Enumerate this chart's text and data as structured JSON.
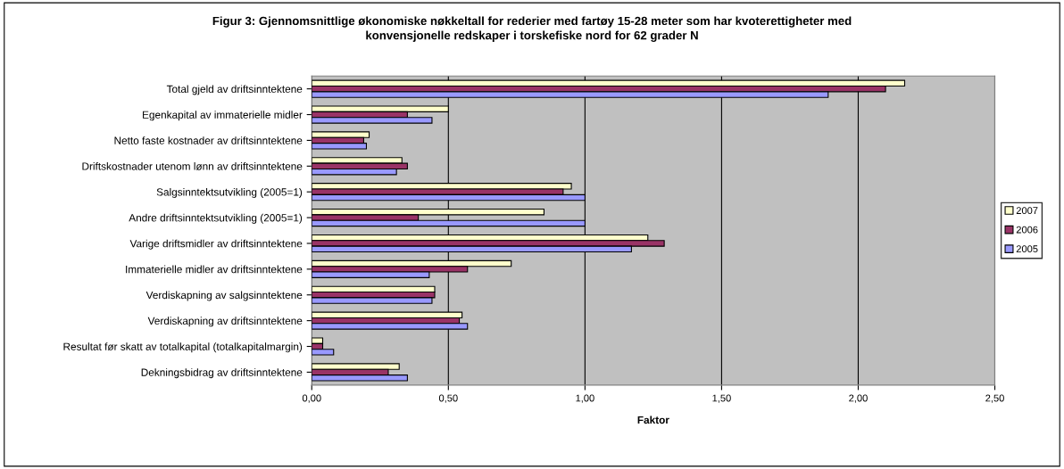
{
  "chart_data": {
    "type": "bar",
    "orientation": "horizontal",
    "title": "Figur 3: Gjennomsnittlige økonomiske nøkkeltall for rederier med fartøy 15-28 meter som har kvoterettigheter med\nkonvensjonelle redskaper i torskefiske nord for 62 grader N",
    "xlabel": "Faktor",
    "categories": [
      "Total gjeld av driftsinntektene",
      "Egenkapital av immaterielle midler",
      "Netto faste kostnader av driftsinntektene",
      "Driftskostnader utenom lønn av driftsinntektene",
      "Salgsinntektsutvikling (2005=1)",
      "Andre driftsinntektsutvikling (2005=1)",
      "Varige driftsmidler av driftsinntektene",
      "Immaterielle midler av driftsinntektene",
      "Verdiskapning av salgsinntektene",
      "Verdiskapning av driftsinntektene",
      "Resultat før skatt av totalkapital (totalkapitalmargin)",
      "Dekningsbidrag av driftsinntektene"
    ],
    "series": [
      {
        "name": "2007",
        "color": "#ffffcc",
        "values": [
          2.17,
          0.5,
          0.21,
          0.33,
          0.95,
          0.85,
          1.23,
          0.73,
          0.45,
          0.55,
          0.04,
          0.32
        ]
      },
      {
        "name": "2006",
        "color": "#993366",
        "values": [
          2.1,
          0.35,
          0.19,
          0.35,
          0.92,
          0.39,
          1.29,
          0.57,
          0.45,
          0.54,
          0.04,
          0.28
        ]
      },
      {
        "name": "2005",
        "color": "#9999ff",
        "values": [
          1.89,
          0.44,
          0.2,
          0.31,
          1.0,
          1.0,
          1.17,
          0.43,
          0.44,
          0.57,
          0.08,
          0.35
        ]
      }
    ],
    "xlim": [
      0,
      2.5
    ],
    "xticks": [
      {
        "value": 0,
        "label": "0,00"
      },
      {
        "value": 0.5,
        "label": "0,50"
      },
      {
        "value": 1,
        "label": "1,00"
      },
      {
        "value": 1.5,
        "label": "1,50"
      },
      {
        "value": 2,
        "label": "2,00"
      },
      {
        "value": 2.5,
        "label": "2,50"
      }
    ],
    "grid": "x",
    "legend": "right"
  }
}
